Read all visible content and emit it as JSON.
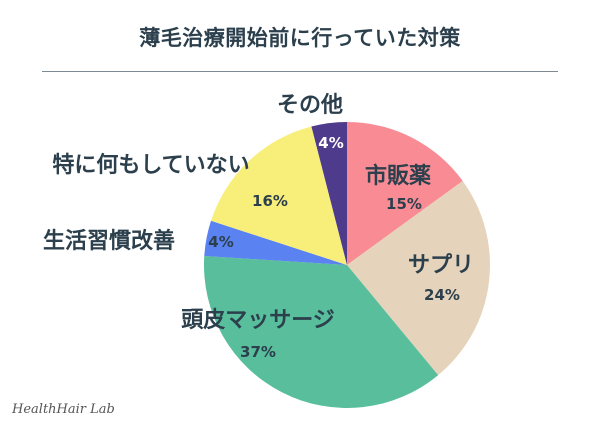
{
  "title": "薄毛治療開始前に行っていた対策",
  "watermark": "HealthHair Lab",
  "chart_data": {
    "type": "pie",
    "title": "薄毛治療開始前に行っていた対策",
    "start": "12 o'clock",
    "direction": "clockwise",
    "slices": [
      {
        "label": "市販薬",
        "value": 15,
        "value_label": "15%",
        "color": "#f98b94"
      },
      {
        "label": "サプリ",
        "value": 24,
        "value_label": "24%",
        "color": "#e5d3bb"
      },
      {
        "label": "頭皮マッサージ",
        "value": 37,
        "value_label": "37%",
        "color": "#58be9b"
      },
      {
        "label": "生活習慣改善",
        "value": 4,
        "value_label": "4%",
        "color": "#5a82f0"
      },
      {
        "label": "特に何もしていない",
        "value": 16,
        "value_label": "16%",
        "color": "#f8ef7a"
      },
      {
        "label": "その他",
        "value": 4,
        "value_label": "4%",
        "color": "#4f3b8b"
      }
    ]
  }
}
